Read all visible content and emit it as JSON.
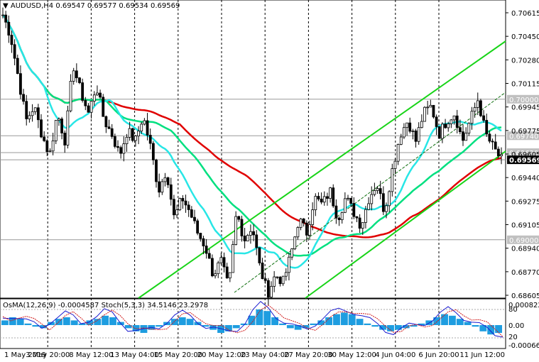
{
  "header": {
    "symbol_label": "AUDUSD,H4",
    "ohlc_label": "0.69547 0.69577 0.69534 0.69569"
  },
  "osma_header": {
    "osma_label": "OsMA(12,26,9) -0.0004587",
    "stoch_label": "Stoch(5,3,3) 34.5146 23.2978"
  },
  "colors": {
    "ma_red": "#e00000",
    "ma_green": "#00e080",
    "ma_cyan": "#28e6e6",
    "channel": "#18d418",
    "candle": "#000000",
    "osma_bar": "#1e9de0",
    "stoch_main": "#1b1bd0",
    "stoch_signal": "#d01b1b"
  },
  "chart_data": {
    "type": "candlestick",
    "symbol": "AUDUSD",
    "timeframe": "H4",
    "last_price": 0.69569,
    "ylim": [
      0.68605,
      0.70615
    ],
    "y_ticks": [
      "0.70615",
      "0.70450",
      "0.70280",
      "0.70115",
      "0.69945",
      "0.69775",
      "0.69605",
      "0.69440",
      "0.69275",
      "0.69105",
      "0.68940",
      "0.68770",
      "0.68605"
    ],
    "levels": [
      {
        "label": "0.70000",
        "value": 0.7
      },
      {
        "label": "0.69740",
        "value": 0.6974
      },
      {
        "label": "0.69620",
        "value": 0.6962
      },
      {
        "label": "0.69569",
        "value": 0.69569
      },
      {
        "label": "0.69000",
        "value": 0.69
      }
    ],
    "x_labels": [
      "1 May 2019",
      "3 May 20:00",
      "8 May 12:00",
      "13 May 04:00",
      "15 May 20:00",
      "20 May 12:00",
      "23 May 04:00",
      "27 May 20:00",
      "30 May 12:00",
      "4 Jun 04:00",
      "6 Jun 20:00",
      "11 Jun 12:00"
    ],
    "close_series": [
      0.706,
      0.7045,
      0.7015,
      0.6985,
      0.6995,
      0.6975,
      0.696,
      0.699,
      0.697,
      0.7025,
      0.7005,
      0.699,
      0.701,
      0.6985,
      0.6975,
      0.696,
      0.6978,
      0.697,
      0.6988,
      0.6965,
      0.6935,
      0.695,
      0.6915,
      0.693,
      0.692,
      0.6905,
      0.6895,
      0.6875,
      0.6885,
      0.6865,
      0.692,
      0.69,
      0.691,
      0.688,
      0.6862,
      0.6875,
      0.687,
      0.689,
      0.6915,
      0.6905,
      0.693,
      0.6925,
      0.6935,
      0.6915,
      0.693,
      0.692,
      0.691,
      0.693,
      0.694,
      0.692,
      0.695,
      0.6975,
      0.6985,
      0.697,
      0.699,
      0.6995,
      0.6975,
      0.6985,
      0.699,
      0.697,
      0.6985,
      0.7,
      0.6975,
      0.6965,
      0.6957
    ]
  },
  "osma_data": {
    "ylim_labels": [
      "0.0008223",
      "0.00",
      "-0.000667"
    ],
    "stoch_levels": [
      "80",
      "20"
    ],
    "histogram": [
      0.3,
      0.5,
      0.4,
      0.1,
      -0.1,
      -0.2,
      0.2,
      0.4,
      0.5,
      0.3,
      0.1,
      0.3,
      0.4,
      0.6,
      0.5,
      0.2,
      -0.2,
      -0.4,
      -0.5,
      -0.3,
      -0.1,
      0.2,
      0.4,
      0.5,
      0.4,
      0.2,
      -0.1,
      -0.3,
      -0.5,
      -0.4,
      -0.2,
      0.1,
      0.6,
      1.0,
      0.9,
      0.5,
      0.1,
      -0.2,
      -0.3,
      -0.2,
      0.1,
      0.3,
      0.5,
      0.7,
      0.8,
      0.7,
      0.4,
      0.1,
      -0.1,
      -0.3,
      -0.4,
      -0.3,
      -0.2,
      -0.1,
      0.1,
      0.3,
      0.5,
      0.7,
      0.6,
      0.4,
      0.2,
      -0.1,
      -0.4,
      -0.6,
      -0.5
    ]
  }
}
